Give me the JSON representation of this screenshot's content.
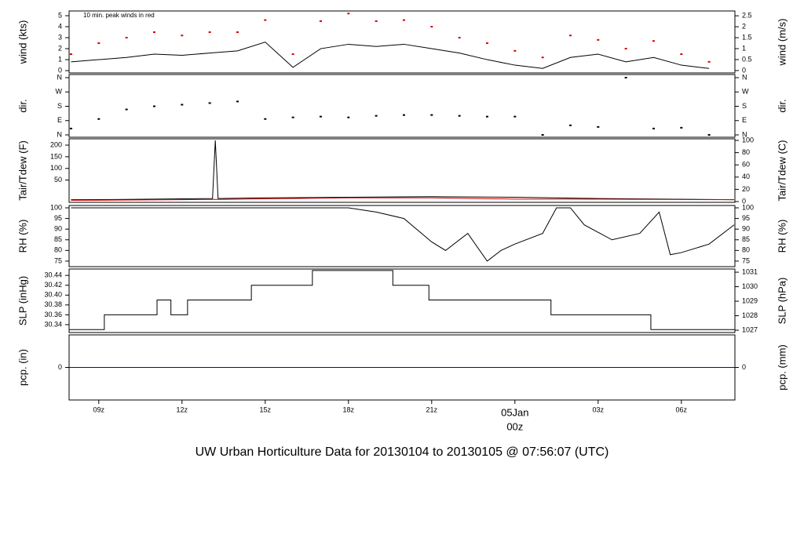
{
  "chart_data": [
    {
      "type": "line",
      "ylabel": "wind (kts)",
      "y2label": "wind (m/s)",
      "annotation": {
        "text": "10 min. peak winds in red",
        "color": "#dd0000"
      },
      "xlim": [
        7.93,
        31.93
      ],
      "ylim": [
        -0.21,
        5.43
      ],
      "yticks": [
        0,
        1,
        2,
        3,
        4,
        5
      ],
      "y2lim": [
        -0.11,
        2.72
      ],
      "y2ticks": [
        0,
        0.5,
        1,
        1.5,
        2,
        2.5
      ],
      "x": [
        8,
        9,
        10,
        11,
        12,
        13,
        14,
        15,
        16,
        17,
        18,
        19,
        20,
        21,
        22,
        23,
        24,
        25,
        26,
        27,
        28,
        29,
        30,
        31
      ],
      "series": [
        {
          "name": "wind",
          "color": "#000000",
          "mark": "line",
          "values": [
            0.8,
            1,
            1.2,
            1.5,
            1.4,
            1.6,
            1.8,
            2.6,
            0.3,
            2.0,
            2.4,
            2.2,
            2.4,
            2.0,
            1.6,
            1.0,
            0.5,
            0.2,
            1.2,
            1.5,
            0.8,
            1.2,
            0.5,
            0.2
          ]
        },
        {
          "name": "peak",
          "color": "#dd0000",
          "mark": "points",
          "values": [
            1.5,
            2.5,
            3,
            3.5,
            3.2,
            3.5,
            3.5,
            4.6,
            1.5,
            4.5,
            5.2,
            4.5,
            4.6,
            4,
            3,
            2.5,
            1.8,
            1.2,
            3.2,
            2.8,
            2,
            2.7,
            1.5,
            0.8
          ]
        }
      ]
    },
    {
      "type": "scatter",
      "ylabel": "dir.",
      "y2label": "dir.",
      "xlim": [
        7.93,
        31.93
      ],
      "ylim": [
        -14.8,
        379.7
      ],
      "yticks": [
        {
          "value": 0,
          "label": "N"
        },
        {
          "value": 90,
          "label": "E"
        },
        {
          "value": 180,
          "label": "S"
        },
        {
          "value": 270,
          "label": "W"
        },
        {
          "value": 360,
          "label": "N"
        }
      ],
      "y2lim": [
        -14.8,
        379.7
      ],
      "y2ticks": [
        {
          "value": 0,
          "label": "N"
        },
        {
          "value": 90,
          "label": "E"
        },
        {
          "value": 180,
          "label": "S"
        },
        {
          "value": 270,
          "label": "W"
        },
        {
          "value": 360,
          "label": "N"
        }
      ],
      "x": [
        8,
        9,
        10,
        11,
        12,
        13,
        14,
        15,
        16,
        17,
        18,
        19,
        20,
        21,
        22,
        23,
        24,
        25,
        26,
        27,
        28,
        29,
        30,
        31
      ],
      "series": [
        {
          "name": "dir",
          "color": "#000000",
          "mark": "points",
          "values": [
            40,
            100,
            160,
            180,
            190,
            200,
            210,
            100,
            110,
            115,
            110,
            120,
            125,
            125,
            120,
            115,
            115,
            0,
            60,
            50,
            360,
            40,
            45,
            0
          ]
        }
      ]
    },
    {
      "type": "line",
      "ylabel": "Tair/Tdew (F)",
      "y2label": "Tair/Tdew (C)",
      "xlim": [
        7.93,
        31.93
      ],
      "ylim": [
        -45.5,
        227
      ],
      "yticks": [
        50,
        100,
        150,
        200
      ],
      "y2lim": [
        -1.3,
        102.6
      ],
      "y2ticks": [
        0,
        20,
        40,
        60,
        80,
        100
      ],
      "x": [
        8,
        10,
        12,
        13.1,
        13.2,
        13.3,
        15,
        18,
        21,
        24,
        27,
        31.9
      ],
      "series": [
        {
          "name": "Tair",
          "color": "#000000",
          "mark": "line",
          "axis": "y2",
          "values": [
            3,
            3.5,
            4.5,
            5,
            100,
            5,
            6,
            7,
            8,
            7,
            5,
            3
          ]
        },
        {
          "name": "Tdew",
          "color": "#cc0000",
          "mark": "line",
          "axis": "y2",
          "values": [
            2,
            2.5,
            3,
            3.5,
            3.5,
            3.5,
            4.5,
            6,
            6,
            4,
            4,
            3
          ]
        }
      ]
    },
    {
      "type": "line",
      "ylabel": "RH (%)",
      "y2label": "RH (%)",
      "xlim": [
        7.93,
        31.93
      ],
      "ylim": [
        72.4,
        101.1
      ],
      "yticks": [
        75,
        80,
        85,
        90,
        95,
        100
      ],
      "y2lim": [
        72.4,
        101.1
      ],
      "y2ticks": [
        75,
        80,
        85,
        90,
        95,
        100
      ],
      "x": [
        8,
        18,
        19,
        20,
        21,
        21.5,
        22.3,
        23,
        23.5,
        24,
        25,
        25.5,
        26,
        26.5,
        27.5,
        28.5,
        29.2,
        29.6,
        30,
        31,
        31.9
      ],
      "series": [
        {
          "name": "RH",
          "color": "#000000",
          "mark": "line",
          "values": [
            100,
            100,
            98,
            95,
            84,
            80,
            88,
            75,
            80,
            83,
            88,
            100,
            100,
            92,
            85,
            88,
            98,
            78,
            79,
            83,
            92
          ]
        }
      ]
    },
    {
      "type": "line",
      "ylabel": "SLP (inHg)",
      "y2label": "SLP (hPa)",
      "xlim": [
        7.93,
        31.93
      ],
      "ylim": [
        30.324,
        30.453
      ],
      "yticks": [
        30.34,
        30.36,
        30.38,
        {
          "value": 30.4,
          "label": "30.40"
        },
        30.42,
        30.44
      ],
      "y2lim": [
        1026.84,
        1031.22
      ],
      "y2ticks": [
        1027,
        1028,
        1029,
        1030,
        1031
      ],
      "x": [
        7.93,
        9.2,
        9.2,
        11.1,
        11.1,
        11.6,
        11.6,
        12.2,
        12.2,
        14.5,
        14.5,
        16.7,
        16.7,
        19.6,
        19.6,
        20.9,
        20.9,
        25.3,
        25.3,
        28.9,
        28.9,
        31.93
      ],
      "series": [
        {
          "name": "SLP",
          "color": "#000000",
          "mark": "line",
          "values": [
            30.33,
            30.33,
            30.36,
            30.36,
            30.39,
            30.39,
            30.36,
            30.36,
            30.39,
            30.39,
            30.42,
            30.42,
            30.45,
            30.45,
            30.42,
            30.42,
            30.39,
            30.39,
            30.36,
            30.36,
            30.33,
            30.33
          ]
        }
      ]
    },
    {
      "type": "line",
      "ylabel": "pcp. (in)",
      "y2label": "pcp. (mm)",
      "xlim": [
        7.93,
        31.93
      ],
      "ylim": [
        -1,
        1
      ],
      "yticks": [
        0
      ],
      "y2lim": [
        -1,
        1
      ],
      "y2ticks": [
        0
      ],
      "xticks": [
        {
          "value": 9,
          "label": "09z"
        },
        {
          "value": 12,
          "label": "12z"
        },
        {
          "value": 15,
          "label": "15z"
        },
        {
          "value": 18,
          "label": "18z"
        },
        {
          "value": 21,
          "label": "21z"
        },
        {
          "value": 24,
          "label": "00z",
          "color": "#cc0000"
        },
        {
          "value": 27,
          "label": "03z"
        },
        {
          "value": 30,
          "label": "06z"
        }
      ],
      "date_label": {
        "text": "05Jan",
        "x": 24,
        "color": "#cc0000"
      },
      "title": "UW Urban Horticulture Data for 20130104  to  20130105 @ 07:56:07  (UTC)",
      "title_color": "#0000cc",
      "x": [
        7.93,
        31.93
      ],
      "series": [
        {
          "name": "pcp",
          "color": "#0000cc",
          "mark": "line",
          "values": [
            0,
            0
          ]
        }
      ]
    }
  ]
}
